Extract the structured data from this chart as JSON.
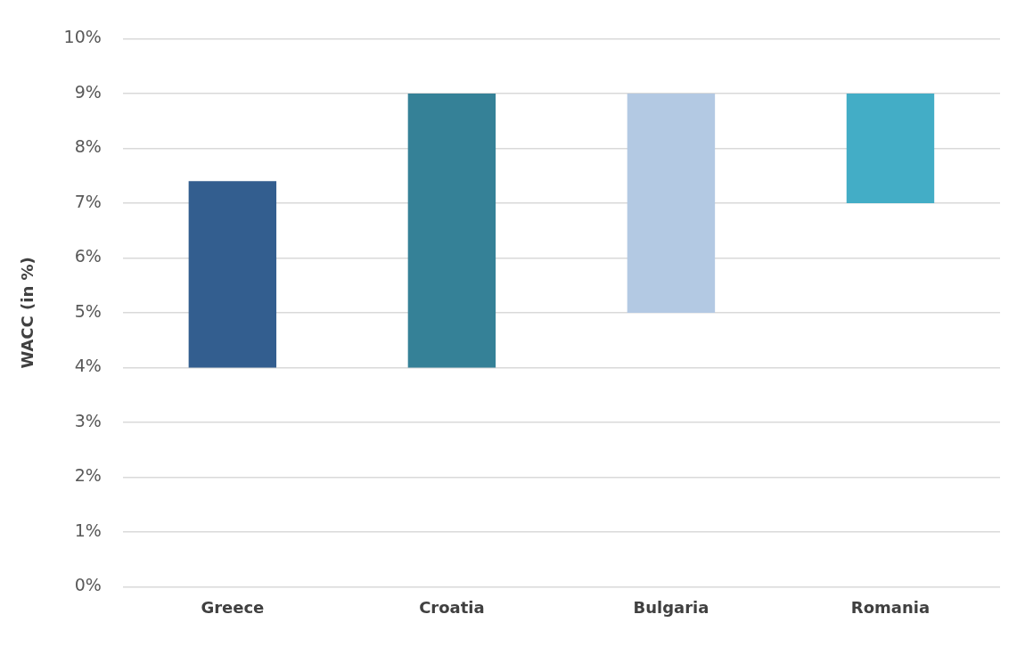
{
  "chart_data": {
    "type": "bar",
    "ylabel": "WACC (in %)",
    "categories": [
      "Greece",
      "Croatia",
      "Bulgaria",
      "Romania"
    ],
    "base": [
      4,
      4,
      5,
      7
    ],
    "values": [
      3.4,
      5,
      4,
      2
    ],
    "colors": [
      "#335e8f",
      "#358197",
      "#b3c9e3",
      "#43adc6"
    ],
    "ylim": [
      0,
      10
    ],
    "yticks": [
      {
        "value": 0,
        "label": "0%"
      },
      {
        "value": 1,
        "label": "1%"
      },
      {
        "value": 2,
        "label": "2%"
      },
      {
        "value": 3,
        "label": "3%"
      },
      {
        "value": 4,
        "label": "4%"
      },
      {
        "value": 5,
        "label": "5%"
      },
      {
        "value": 6,
        "label": "6%"
      },
      {
        "value": 7,
        "label": "7%"
      },
      {
        "value": 8,
        "label": "8%"
      },
      {
        "value": 9,
        "label": "9%"
      },
      {
        "value": 10,
        "label": "10%"
      }
    ],
    "grid": "y",
    "legend": false
  }
}
